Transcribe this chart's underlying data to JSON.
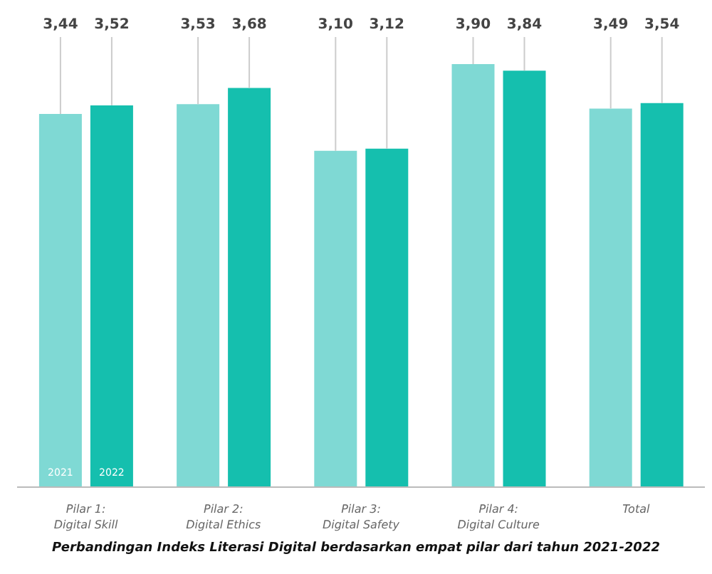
{
  "chart_data": {
    "type": "bar",
    "title": "Perbandingan Indeks Literasi Digital berdasarkan empat pilar dari tahun 2021-2022",
    "categories": [
      "Pilar 1:\nDigital Skill",
      "Pilar 2:\nDigital Ethics",
      "Pilar 3:\nDigital Safety",
      "Pilar 4:\nDigital Culture",
      "Total"
    ],
    "series": [
      {
        "name": "2021",
        "color": "#7fd9d4",
        "values": [
          3.44,
          3.53,
          3.1,
          3.9,
          3.49
        ],
        "value_labels": [
          "3,44",
          "3,53",
          "3,10",
          "3,90",
          "3,49"
        ]
      },
      {
        "name": "2022",
        "color": "#15bfae",
        "values": [
          3.52,
          3.68,
          3.12,
          3.84,
          3.54
        ],
        "value_labels": [
          "3,52",
          "3,68",
          "3,12",
          "3,84",
          "3,54"
        ]
      }
    ]
  }
}
